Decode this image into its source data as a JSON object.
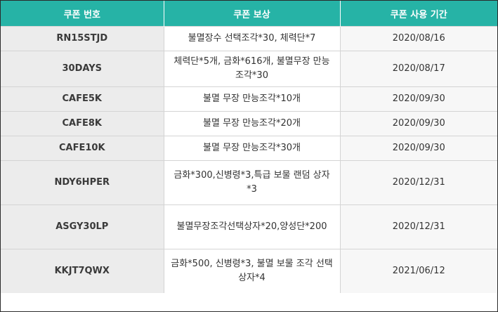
{
  "table": {
    "headers": [
      "쿠폰 번호",
      "쿠폰 보상",
      "쿠폰 사용 기간"
    ],
    "rows": [
      {
        "code": "RN15STJD",
        "reward": "불멸장수 선택조각*30, 체력단*7",
        "period": "2020/08/16"
      },
      {
        "code": "30DAYS",
        "reward": "체력단*5개, 금화*616개, 불멸무장 만능 조각*30",
        "period": "2020/08/17"
      },
      {
        "code": "CAFE5K",
        "reward": "불멸 무장 만능조각*10개",
        "period": "2020/09/30"
      },
      {
        "code": "CAFE8K",
        "reward": "불멸 무장 만능조각*20개",
        "period": "2020/09/30"
      },
      {
        "code": "CAFE10K",
        "reward": "불멸 무장 만능조각*30개",
        "period": "2020/09/30"
      },
      {
        "code": "NDY6HPER",
        "reward": "금화*300,신병령*3,특급 보물 랜덤 상자*3",
        "period": "2020/12/31"
      },
      {
        "code": "ASGY30LP",
        "reward": "불멸무장조각선택상자*20,양성단*200",
        "period": "2020/12/31"
      },
      {
        "code": "KKJT7QWX",
        "reward": "금화*500, 신병령*3, 불멸 보물 조각 선택 상자*4",
        "period": "2021/06/12"
      }
    ]
  }
}
